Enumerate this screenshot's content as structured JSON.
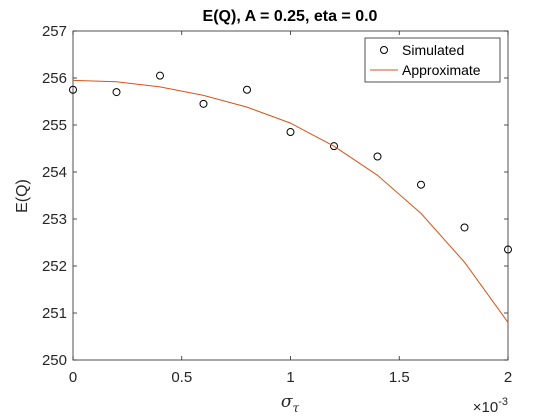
{
  "chart_data": {
    "type": "scatter",
    "title": "E(Q), A = 0.25, eta = 0.0",
    "xlabel": "σ_τ",
    "xlabel_main": "σ",
    "xlabel_sub": "τ",
    "ylabel": "E(Q)",
    "x_exponent_base": "×10",
    "x_exponent_power": "-3",
    "xlim": [
      0,
      2
    ],
    "ylim": [
      250,
      257
    ],
    "x_ticks": [
      0,
      0.5,
      1,
      1.5,
      2
    ],
    "x_tick_labels": [
      "0",
      "0.5",
      "1",
      "1.5",
      "2"
    ],
    "y_ticks": [
      250,
      251,
      252,
      253,
      254,
      255,
      256,
      257
    ],
    "y_tick_labels": [
      "250",
      "251",
      "252",
      "253",
      "254",
      "255",
      "256",
      "257"
    ],
    "grid": false,
    "legend_position": "top-right",
    "series": [
      {
        "name": "Simulated",
        "marker": "circle",
        "line": "none",
        "color": "#000000",
        "x": [
          0,
          0.2,
          0.4,
          0.6,
          0.8,
          1.0,
          1.2,
          1.4,
          1.6,
          1.8,
          2.0
        ],
        "y": [
          255.75,
          255.7,
          256.05,
          255.45,
          255.75,
          254.85,
          254.55,
          254.33,
          253.73,
          252.82,
          252.35
        ]
      },
      {
        "name": "Approximate",
        "marker": "none",
        "line": "solid",
        "color": "#D95319",
        "x": [
          0,
          0.2,
          0.4,
          0.6,
          0.8,
          1.0,
          1.2,
          1.4,
          1.6,
          1.8,
          2.0
        ],
        "y": [
          255.95,
          255.92,
          255.81,
          255.63,
          255.38,
          255.04,
          254.55,
          253.93,
          253.12,
          252.08,
          250.8
        ]
      }
    ]
  }
}
